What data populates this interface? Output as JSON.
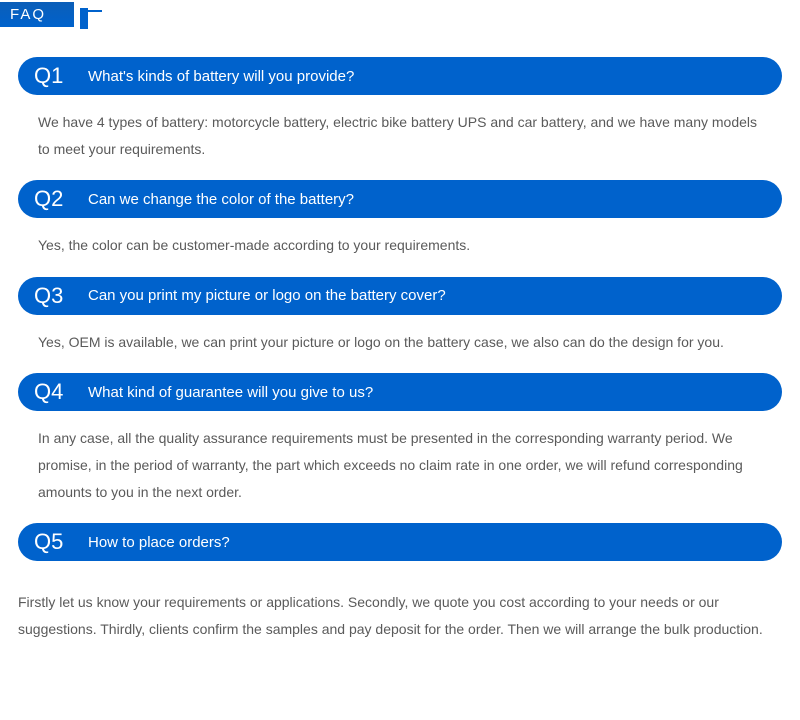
{
  "header": {
    "title": "FAQ"
  },
  "colors": {
    "primary": "#0062cc",
    "text": "#5a5a5a",
    "background": "#ffffff",
    "headerText": "#ffffff"
  },
  "typography": {
    "qLabelSize": 22,
    "qTextSize": 15,
    "answerSize": 14,
    "headerSize": 15
  },
  "faqs": [
    {
      "label": "Q1",
      "question": "What's kinds of battery will you provide?",
      "answer": "We have 4 types of battery: motorcycle battery, electric bike battery UPS and car battery, and we have many models to meet your requirements."
    },
    {
      "label": "Q2",
      "question": "Can we change the color of the battery?",
      "answer": "Yes, the color can be customer-made according to your requirements."
    },
    {
      "label": "Q3",
      "question": "Can you print my picture or logo on the battery cover?",
      "answer": "Yes, OEM is available, we can print your picture or logo on the battery case, we also can do the design for you."
    },
    {
      "label": "Q4",
      "question": "What kind of guarantee will you give to us?",
      "answer": "In any case, all the quality assurance requirements must be presented in the corresponding warranty period. We promise, in the period of warranty, the part which exceeds no claim rate in one order, we will refund corresponding amounts to you in the next order."
    },
    {
      "label": "Q5",
      "question": "How to place orders?",
      "answer": "Firstly let us know your requirements or applications. Secondly, we quote you cost according to your needs or our suggestions. Thirdly, clients confirm the samples and pay deposit for the order. Then we will arrange the bulk production."
    }
  ]
}
